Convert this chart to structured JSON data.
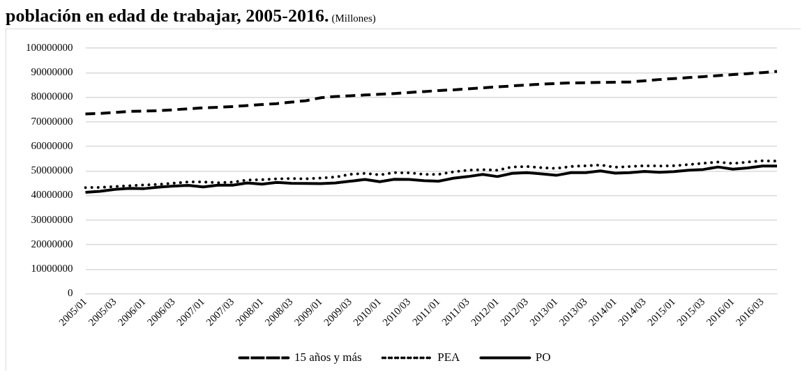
{
  "chart_data": {
    "type": "line",
    "title": "población en edad de trabajar, 2005-2016.",
    "subtitle": "(Millones)",
    "categories": [
      "2005/01",
      null,
      "2005/03",
      null,
      "2006/01",
      null,
      "2006/03",
      null,
      "2007/01",
      null,
      "2007/03",
      null,
      "2008/01",
      null,
      "2008/03",
      null,
      "2009/01",
      null,
      "2009/03",
      null,
      "2010/01",
      null,
      "2010/03",
      null,
      "2011/01",
      null,
      "2011/03",
      null,
      "2012/01",
      null,
      "2012/03",
      null,
      "2013/01",
      null,
      "2013/03",
      null,
      "2014/01",
      null,
      "2014/03",
      null,
      "2015/01",
      null,
      "2015/03",
      null,
      "2016/01",
      null,
      "2016/03",
      null
    ],
    "series": [
      {
        "name": "15 años y más",
        "color": "#000000",
        "line_style": "dashed",
        "values": [
          73200000,
          73400000,
          73800000,
          74200000,
          74400000,
          74500000,
          74900000,
          75300000,
          75700000,
          75900000,
          76200000,
          76600000,
          77000000,
          77400000,
          78000000,
          78600000,
          79800000,
          80300000,
          80600000,
          80900000,
          81200000,
          81500000,
          81900000,
          82300000,
          82700000,
          83000000,
          83400000,
          83800000,
          84200000,
          84600000,
          85000000,
          85300000,
          85600000,
          85800000,
          85900000,
          86000000,
          86100000,
          86200000,
          86700000,
          87200000,
          87600000,
          88000000,
          88400000,
          88800000,
          89200000,
          89600000,
          90000000,
          90500000
        ]
      },
      {
        "name": "PEA",
        "color": "#000000",
        "line_style": "dotted",
        "values": [
          43200000,
          43300000,
          43600000,
          44000000,
          44300000,
          44500000,
          45000000,
          45500000,
          45500000,
          45200000,
          45400000,
          46300000,
          46400000,
          46800000,
          46900000,
          46800000,
          47100000,
          47500000,
          48600000,
          49000000,
          48400000,
          49300000,
          49200000,
          48600000,
          48600000,
          49600000,
          50300000,
          50500000,
          50300000,
          51600000,
          51800000,
          51300000,
          51000000,
          51800000,
          52100000,
          52400000,
          51500000,
          51800000,
          52100000,
          52000000,
          52100000,
          52600000,
          53100000,
          53600000,
          53000000,
          53600000,
          54100000,
          54000000
        ]
      },
      {
        "name": "PO",
        "color": "#000000",
        "line_style": "solid",
        "values": [
          41300000,
          41700000,
          42500000,
          42900000,
          42800000,
          43400000,
          43800000,
          44100000,
          43500000,
          44200000,
          44200000,
          45100000,
          44600000,
          45300000,
          45000000,
          44900000,
          44800000,
          45100000,
          45800000,
          46500000,
          45600000,
          46600000,
          46500000,
          46000000,
          45800000,
          47000000,
          47700000,
          48600000,
          47700000,
          49000000,
          49300000,
          48800000,
          48200000,
          49300000,
          49300000,
          50000000,
          49100000,
          49300000,
          49800000,
          49400000,
          49700000,
          50300000,
          50600000,
          51600000,
          50700000,
          51200000,
          52000000,
          52000000
        ]
      }
    ],
    "ylim": [
      0,
      100000000
    ],
    "yticks": [
      0,
      10000000,
      20000000,
      30000000,
      40000000,
      50000000,
      60000000,
      70000000,
      80000000,
      90000000,
      100000000
    ],
    "grid": "y",
    "legend": "bottom",
    "marker": "none"
  }
}
